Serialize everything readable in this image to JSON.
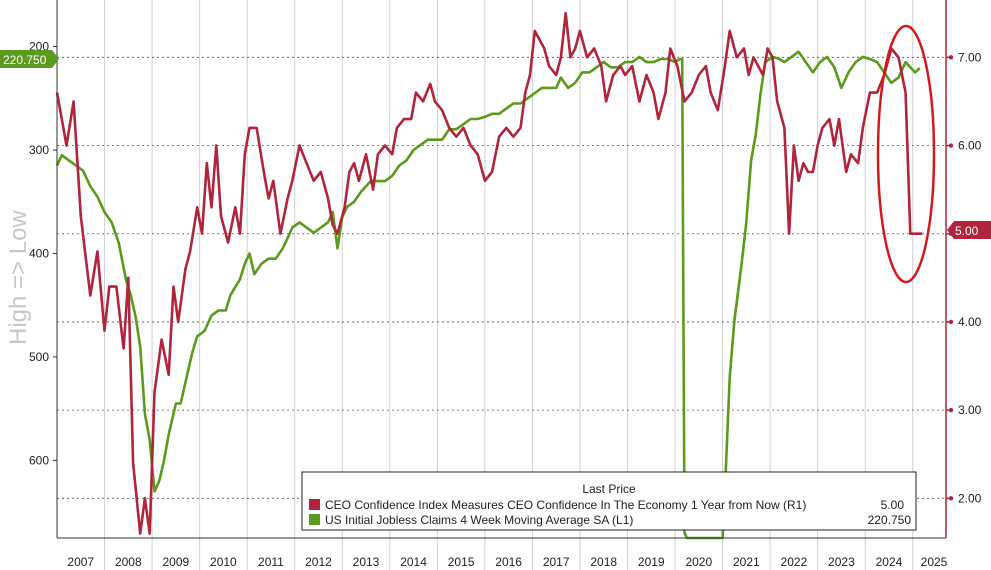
{
  "chart_data": {
    "type": "line",
    "side_label": "High => Low",
    "colors": {
      "ceo": "#b0243c",
      "claims": "#5b9a1c",
      "highlight": "#d11b1b",
      "grid": "#555555"
    },
    "legend": {
      "title": "Last Price",
      "entries": [
        {
          "label": "CEO Confidence Index Measures CEO Confidence In The Economy 1 Year from Now  (R1)",
          "value": "5.00",
          "color": "#b0243c"
        },
        {
          "label": "US Initial Jobless Claims 4 Week Moving Average SA  (L1)",
          "value": "220.750",
          "color": "#5b9a1c"
        }
      ]
    },
    "x_ticks": [
      "2007",
      "2008",
      "2009",
      "2010",
      "2011",
      "2012",
      "2013",
      "2014",
      "2015",
      "2016",
      "2017",
      "2018",
      "2019",
      "2020",
      "2021",
      "2022",
      "2023",
      "2024",
      "2025"
    ],
    "x_range": [
      2007,
      2025.7
    ],
    "left_axis": {
      "ticks": [
        "200",
        "300",
        "400",
        "500",
        "600"
      ],
      "range": [
        155,
        675
      ],
      "inverted": true
    },
    "right_axis": {
      "ticks": [
        "7.00",
        "6.00",
        "5.00",
        "4.00",
        "3.00",
        "2.00"
      ],
      "range": [
        1.55,
        7.65
      ]
    },
    "last_value_tags": {
      "claims": "220.750",
      "ceo": "5.00"
    },
    "series": [
      {
        "name": "CEO Confidence Index Measures CEO Confidence In The Economy 1 Year from Now",
        "axis": "right",
        "points": [
          [
            2007.0,
            6.6
          ],
          [
            2007.1,
            6.3
          ],
          [
            2007.2,
            6.0
          ],
          [
            2007.35,
            6.5
          ],
          [
            2007.5,
            5.2
          ],
          [
            2007.7,
            4.3
          ],
          [
            2007.85,
            4.8
          ],
          [
            2008.0,
            3.9
          ],
          [
            2008.1,
            4.4
          ],
          [
            2008.25,
            4.4
          ],
          [
            2008.4,
            3.7
          ],
          [
            2008.5,
            4.5
          ],
          [
            2008.6,
            2.4
          ],
          [
            2008.75,
            1.6
          ],
          [
            2008.85,
            2.0
          ],
          [
            2008.95,
            1.6
          ],
          [
            2009.05,
            3.2
          ],
          [
            2009.2,
            3.8
          ],
          [
            2009.35,
            3.4
          ],
          [
            2009.45,
            4.4
          ],
          [
            2009.55,
            4.0
          ],
          [
            2009.7,
            4.6
          ],
          [
            2009.8,
            4.8
          ],
          [
            2009.95,
            5.3
          ],
          [
            2010.05,
            5.0
          ],
          [
            2010.15,
            5.8
          ],
          [
            2010.25,
            5.3
          ],
          [
            2010.35,
            6.0
          ],
          [
            2010.45,
            5.2
          ],
          [
            2010.6,
            4.9
          ],
          [
            2010.75,
            5.3
          ],
          [
            2010.85,
            5.0
          ],
          [
            2010.95,
            5.9
          ],
          [
            2011.05,
            6.2
          ],
          [
            2011.2,
            6.2
          ],
          [
            2011.35,
            5.7
          ],
          [
            2011.45,
            5.4
          ],
          [
            2011.55,
            5.6
          ],
          [
            2011.7,
            5.0
          ],
          [
            2011.85,
            5.4
          ],
          [
            2011.95,
            5.6
          ],
          [
            2012.1,
            6.0
          ],
          [
            2012.25,
            5.8
          ],
          [
            2012.4,
            5.6
          ],
          [
            2012.55,
            5.7
          ],
          [
            2012.7,
            5.4
          ],
          [
            2012.8,
            5.1
          ],
          [
            2012.9,
            5.0
          ],
          [
            2013.05,
            5.3
          ],
          [
            2013.15,
            5.7
          ],
          [
            2013.25,
            5.8
          ],
          [
            2013.35,
            5.6
          ],
          [
            2013.5,
            5.9
          ],
          [
            2013.65,
            5.5
          ],
          [
            2013.75,
            5.9
          ],
          [
            2013.9,
            6.0
          ],
          [
            2014.05,
            5.9
          ],
          [
            2014.15,
            6.2
          ],
          [
            2014.3,
            6.3
          ],
          [
            2014.45,
            6.3
          ],
          [
            2014.55,
            6.6
          ],
          [
            2014.7,
            6.5
          ],
          [
            2014.85,
            6.7
          ],
          [
            2014.95,
            6.5
          ],
          [
            2015.1,
            6.4
          ],
          [
            2015.25,
            6.2
          ],
          [
            2015.4,
            6.1
          ],
          [
            2015.55,
            6.2
          ],
          [
            2015.7,
            6.0
          ],
          [
            2015.85,
            5.9
          ],
          [
            2016.0,
            5.6
          ],
          [
            2016.15,
            5.7
          ],
          [
            2016.3,
            6.1
          ],
          [
            2016.45,
            6.2
          ],
          [
            2016.6,
            6.1
          ],
          [
            2016.75,
            6.2
          ],
          [
            2016.85,
            6.6
          ],
          [
            2016.95,
            6.8
          ],
          [
            2017.05,
            7.3
          ],
          [
            2017.15,
            7.2
          ],
          [
            2017.25,
            7.1
          ],
          [
            2017.35,
            6.9
          ],
          [
            2017.5,
            6.8
          ],
          [
            2017.6,
            7.0
          ],
          [
            2017.7,
            7.5
          ],
          [
            2017.8,
            7.0
          ],
          [
            2017.9,
            7.1
          ],
          [
            2018.0,
            7.3
          ],
          [
            2018.15,
            7.0
          ],
          [
            2018.3,
            7.1
          ],
          [
            2018.45,
            6.9
          ],
          [
            2018.55,
            6.5
          ],
          [
            2018.7,
            6.8
          ],
          [
            2018.85,
            6.9
          ],
          [
            2018.95,
            6.8
          ],
          [
            2019.1,
            6.9
          ],
          [
            2019.25,
            6.5
          ],
          [
            2019.4,
            6.8
          ],
          [
            2019.55,
            6.6
          ],
          [
            2019.65,
            6.3
          ],
          [
            2019.8,
            6.6
          ],
          [
            2019.9,
            7.1
          ],
          [
            2020.05,
            6.9
          ],
          [
            2020.2,
            6.5
          ],
          [
            2020.35,
            6.6
          ],
          [
            2020.5,
            6.8
          ],
          [
            2020.65,
            6.9
          ],
          [
            2020.75,
            6.6
          ],
          [
            2020.9,
            6.4
          ],
          [
            2021.05,
            6.9
          ],
          [
            2021.15,
            7.3
          ],
          [
            2021.3,
            7.0
          ],
          [
            2021.45,
            7.1
          ],
          [
            2021.55,
            6.8
          ],
          [
            2021.65,
            7.0
          ],
          [
            2021.75,
            6.9
          ],
          [
            2021.85,
            6.8
          ],
          [
            2021.95,
            7.1
          ],
          [
            2022.05,
            7.0
          ],
          [
            2022.15,
            6.5
          ],
          [
            2022.3,
            6.2
          ],
          [
            2022.4,
            5.0
          ],
          [
            2022.5,
            6.0
          ],
          [
            2022.6,
            5.6
          ],
          [
            2022.7,
            5.8
          ],
          [
            2022.8,
            5.7
          ],
          [
            2022.9,
            5.7
          ],
          [
            2023.0,
            6.0
          ],
          [
            2023.1,
            6.2
          ],
          [
            2023.25,
            6.3
          ],
          [
            2023.35,
            6.0
          ],
          [
            2023.45,
            6.3
          ],
          [
            2023.6,
            5.7
          ],
          [
            2023.7,
            5.9
          ],
          [
            2023.85,
            5.8
          ],
          [
            2023.95,
            6.2
          ],
          [
            2024.1,
            6.6
          ],
          [
            2024.25,
            6.6
          ],
          [
            2024.4,
            6.8
          ],
          [
            2024.55,
            7.1
          ],
          [
            2024.7,
            7.0
          ],
          [
            2024.85,
            6.6
          ],
          [
            2024.95,
            5.0
          ],
          [
            2025.05,
            5.0
          ],
          [
            2025.2,
            5.0
          ]
        ]
      },
      {
        "name": "US Initial Jobless Claims 4 Week Moving Average SA",
        "axis": "left",
        "points": [
          [
            2007.0,
            315
          ],
          [
            2007.1,
            305
          ],
          [
            2007.25,
            310
          ],
          [
            2007.4,
            315
          ],
          [
            2007.55,
            320
          ],
          [
            2007.7,
            335
          ],
          [
            2007.85,
            345
          ],
          [
            2008.0,
            360
          ],
          [
            2008.15,
            370
          ],
          [
            2008.3,
            390
          ],
          [
            2008.45,
            425
          ],
          [
            2008.55,
            440
          ],
          [
            2008.65,
            460
          ],
          [
            2008.75,
            490
          ],
          [
            2008.85,
            555
          ],
          [
            2008.95,
            580
          ],
          [
            2009.05,
            630
          ],
          [
            2009.15,
            620
          ],
          [
            2009.25,
            600
          ],
          [
            2009.35,
            575
          ],
          [
            2009.5,
            545
          ],
          [
            2009.6,
            545
          ],
          [
            2009.75,
            515
          ],
          [
            2009.85,
            495
          ],
          [
            2009.95,
            480
          ],
          [
            2010.1,
            475
          ],
          [
            2010.25,
            460
          ],
          [
            2010.4,
            455
          ],
          [
            2010.55,
            455
          ],
          [
            2010.65,
            440
          ],
          [
            2010.85,
            425
          ],
          [
            2010.95,
            410
          ],
          [
            2011.05,
            400
          ],
          [
            2011.15,
            420
          ],
          [
            2011.3,
            410
          ],
          [
            2011.45,
            405
          ],
          [
            2011.6,
            405
          ],
          [
            2011.75,
            395
          ],
          [
            2011.85,
            385
          ],
          [
            2011.95,
            375
          ],
          [
            2012.1,
            370
          ],
          [
            2012.25,
            375
          ],
          [
            2012.4,
            380
          ],
          [
            2012.55,
            375
          ],
          [
            2012.7,
            370
          ],
          [
            2012.8,
            360
          ],
          [
            2012.9,
            395
          ],
          [
            2013.0,
            365
          ],
          [
            2013.1,
            355
          ],
          [
            2013.25,
            350
          ],
          [
            2013.4,
            340
          ],
          [
            2013.5,
            335
          ],
          [
            2013.6,
            330
          ],
          [
            2013.75,
            330
          ],
          [
            2013.9,
            330
          ],
          [
            2014.05,
            325
          ],
          [
            2014.2,
            315
          ],
          [
            2014.35,
            310
          ],
          [
            2014.5,
            300
          ],
          [
            2014.65,
            295
          ],
          [
            2014.8,
            290
          ],
          [
            2014.95,
            290
          ],
          [
            2015.1,
            290
          ],
          [
            2015.25,
            280
          ],
          [
            2015.4,
            280
          ],
          [
            2015.55,
            275
          ],
          [
            2015.7,
            270
          ],
          [
            2015.85,
            270
          ],
          [
            2016.0,
            268
          ],
          [
            2016.15,
            265
          ],
          [
            2016.3,
            265
          ],
          [
            2016.45,
            260
          ],
          [
            2016.6,
            255
          ],
          [
            2016.75,
            255
          ],
          [
            2016.9,
            250
          ],
          [
            2017.05,
            245
          ],
          [
            2017.2,
            240
          ],
          [
            2017.35,
            240
          ],
          [
            2017.5,
            240
          ],
          [
            2017.6,
            230
          ],
          [
            2017.75,
            240
          ],
          [
            2017.9,
            235
          ],
          [
            2018.05,
            225
          ],
          [
            2018.2,
            225
          ],
          [
            2018.35,
            220
          ],
          [
            2018.5,
            215
          ],
          [
            2018.65,
            220
          ],
          [
            2018.8,
            220
          ],
          [
            2018.95,
            215
          ],
          [
            2019.1,
            215
          ],
          [
            2019.25,
            210
          ],
          [
            2019.4,
            215
          ],
          [
            2019.55,
            215
          ],
          [
            2019.7,
            212
          ],
          [
            2019.85,
            212
          ],
          [
            2020.0,
            215
          ],
          [
            2020.1,
            212
          ],
          [
            2020.15,
            212
          ],
          [
            2020.2,
            670
          ],
          [
            2020.25,
            675
          ],
          [
            2021.0,
            675
          ],
          [
            2021.05,
            630
          ],
          [
            2021.15,
            520
          ],
          [
            2021.25,
            465
          ],
          [
            2021.4,
            410
          ],
          [
            2021.5,
            370
          ],
          [
            2021.6,
            310
          ],
          [
            2021.7,
            285
          ],
          [
            2021.8,
            245
          ],
          [
            2021.9,
            215
          ],
          [
            2022.05,
            210
          ],
          [
            2022.2,
            212
          ],
          [
            2022.3,
            215
          ],
          [
            2022.45,
            210
          ],
          [
            2022.6,
            205
          ],
          [
            2022.75,
            215
          ],
          [
            2022.9,
            225
          ],
          [
            2023.05,
            215
          ],
          [
            2023.2,
            210
          ],
          [
            2023.35,
            220
          ],
          [
            2023.5,
            240
          ],
          [
            2023.65,
            225
          ],
          [
            2023.8,
            215
          ],
          [
            2023.95,
            210
          ],
          [
            2024.1,
            212
          ],
          [
            2024.25,
            215
          ],
          [
            2024.4,
            225
          ],
          [
            2024.55,
            235
          ],
          [
            2024.7,
            230
          ],
          [
            2024.85,
            215
          ],
          [
            2024.95,
            220
          ],
          [
            2025.05,
            225
          ],
          [
            2025.15,
            220.75
          ]
        ]
      }
    ]
  }
}
